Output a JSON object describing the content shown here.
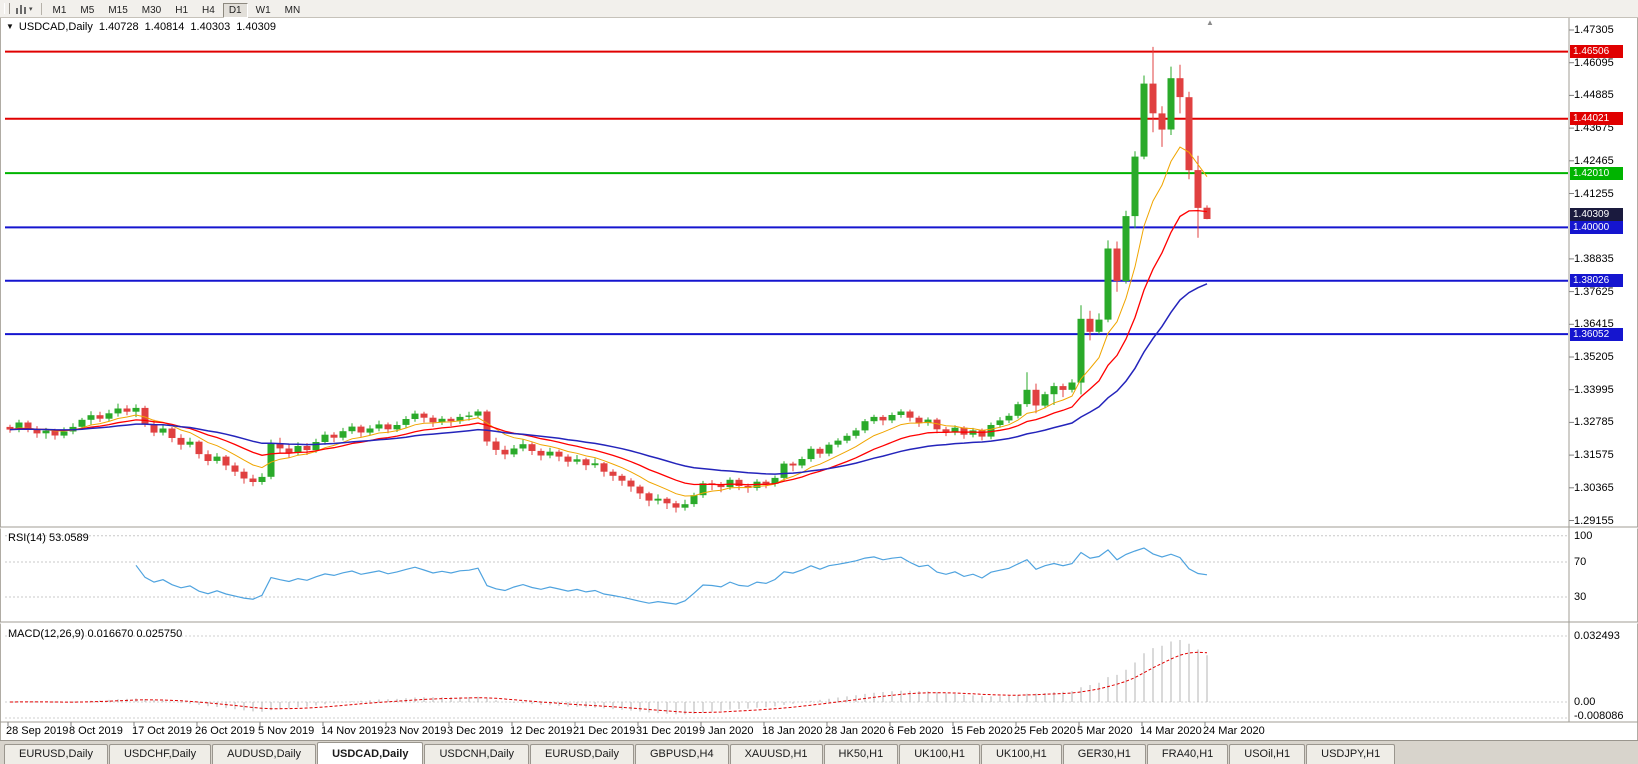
{
  "toolbar": {
    "timeframes": [
      "M1",
      "M5",
      "M15",
      "M30",
      "H1",
      "H4",
      "D1",
      "W1",
      "MN"
    ],
    "active": "D1"
  },
  "chart": {
    "symbol_title": "USDCAD,Daily",
    "ohlc": {
      "open": "1.40728",
      "high": "1.40814",
      "low": "1.40303",
      "close": "1.40309"
    },
    "price_axis_ticks": [
      "1.47305",
      "1.46095",
      "1.44885",
      "1.43675",
      "1.42465",
      "1.41255",
      "1.38835",
      "1.37625",
      "1.36415",
      "1.35205",
      "1.33995",
      "1.32785",
      "1.31575",
      "1.30365",
      "1.29155"
    ],
    "current_price_tag": {
      "value": "1.40309",
      "color": "#1a1a3e"
    },
    "hlines": [
      {
        "price": 1.46506,
        "label": "1.46506",
        "color": "#e00000"
      },
      {
        "price": 1.44021,
        "label": "1.44021",
        "color": "#e00000"
      },
      {
        "price": 1.4201,
        "label": "1.42010",
        "color": "#00b400"
      },
      {
        "price": 1.4,
        "label": "1.40000",
        "color": "#1515cf"
      },
      {
        "price": 1.38026,
        "label": "1.38026",
        "color": "#1515cf"
      },
      {
        "price": 1.36052,
        "label": "1.36052",
        "color": "#1515cf"
      }
    ],
    "date_axis": [
      "28 Sep 2019",
      "8 Oct 2019",
      "17 Oct 2019",
      "26 Oct 2019",
      "5 Nov 2019",
      "14 Nov 2019",
      "23 Nov 2019",
      "3 Dec 2019",
      "12 Dec 2019",
      "21 Dec 2019",
      "31 Dec 2019",
      "9 Jan 2020",
      "18 Jan 2020",
      "28 Jan 2020",
      "6 Feb 2020",
      "15 Feb 2020",
      "25 Feb 2020",
      "5 Mar 2020",
      "14 Mar 2020",
      "24 Mar 2020"
    ],
    "colors": {
      "up": "#2aaa2a",
      "down": "#e04040",
      "ma_fast": "#f0a500",
      "ma_mid": "#ff0000",
      "ma_slow": "#2424bb"
    }
  },
  "chart_data": {
    "type": "candlestick",
    "symbol": "USDCAD",
    "timeframe": "Daily",
    "candles": [
      [
        1.3262,
        1.327,
        1.324,
        1.3252
      ],
      [
        1.3252,
        1.3288,
        1.3242,
        1.3278
      ],
      [
        1.3278,
        1.3285,
        1.3242,
        1.3255
      ],
      [
        1.3255,
        1.3265,
        1.3222,
        1.3238
      ],
      [
        1.3238,
        1.3258,
        1.3218,
        1.3248
      ],
      [
        1.3248,
        1.3255,
        1.3215,
        1.323
      ],
      [
        1.323,
        1.326,
        1.322,
        1.3245
      ],
      [
        1.3245,
        1.3275,
        1.3235,
        1.3262
      ],
      [
        1.3262,
        1.3295,
        1.3252,
        1.3288
      ],
      [
        1.3288,
        1.332,
        1.327,
        1.3305
      ],
      [
        1.3305,
        1.3318,
        1.328,
        1.3292
      ],
      [
        1.3292,
        1.3325,
        1.3282,
        1.3312
      ],
      [
        1.3312,
        1.3348,
        1.33,
        1.333
      ],
      [
        1.333,
        1.3342,
        1.3305,
        1.3318
      ],
      [
        1.3318,
        1.3345,
        1.3298,
        1.3332
      ],
      [
        1.3332,
        1.334,
        1.3262,
        1.3272
      ],
      [
        1.3272,
        1.3288,
        1.3228,
        1.3241
      ],
      [
        1.3241,
        1.3268,
        1.323,
        1.3256
      ],
      [
        1.3256,
        1.3262,
        1.3205,
        1.3221
      ],
      [
        1.3221,
        1.3235,
        1.3178,
        1.3196
      ],
      [
        1.3196,
        1.3222,
        1.3186,
        1.3207
      ],
      [
        1.3207,
        1.3212,
        1.3145,
        1.3161
      ],
      [
        1.3161,
        1.3175,
        1.312,
        1.3136
      ],
      [
        1.3136,
        1.3165,
        1.3126,
        1.3152
      ],
      [
        1.3152,
        1.3158,
        1.3102,
        1.3119
      ],
      [
        1.3119,
        1.313,
        1.308,
        1.3096
      ],
      [
        1.3096,
        1.3108,
        1.3052,
        1.3071
      ],
      [
        1.3071,
        1.3085,
        1.3042,
        1.3058
      ],
      [
        1.3058,
        1.309,
        1.3048,
        1.3077
      ],
      [
        1.3077,
        1.3215,
        1.3068,
        1.3201
      ],
      [
        1.3201,
        1.3222,
        1.3165,
        1.3182
      ],
      [
        1.3182,
        1.3198,
        1.3148,
        1.3166
      ],
      [
        1.3166,
        1.3205,
        1.3156,
        1.3191
      ],
      [
        1.3191,
        1.3202,
        1.3158,
        1.3176
      ],
      [
        1.3176,
        1.3218,
        1.3166,
        1.3206
      ],
      [
        1.3206,
        1.3245,
        1.3196,
        1.3233
      ],
      [
        1.3233,
        1.3242,
        1.3205,
        1.3222
      ],
      [
        1.3222,
        1.3258,
        1.3212,
        1.3246
      ],
      [
        1.3246,
        1.3275,
        1.3236,
        1.3263
      ],
      [
        1.3263,
        1.327,
        1.3225,
        1.3241
      ],
      [
        1.3241,
        1.3268,
        1.3231,
        1.3256
      ],
      [
        1.3256,
        1.3285,
        1.3246,
        1.3271
      ],
      [
        1.3271,
        1.3278,
        1.3238,
        1.3253
      ],
      [
        1.3253,
        1.3282,
        1.3243,
        1.3269
      ],
      [
        1.3269,
        1.3302,
        1.3259,
        1.3291
      ],
      [
        1.3291,
        1.3322,
        1.3281,
        1.3311
      ],
      [
        1.3311,
        1.3318,
        1.3278,
        1.3296
      ],
      [
        1.3296,
        1.3305,
        1.3262,
        1.3279
      ],
      [
        1.3279,
        1.3302,
        1.3269,
        1.3292
      ],
      [
        1.3292,
        1.3299,
        1.3265,
        1.3283
      ],
      [
        1.3283,
        1.331,
        1.3273,
        1.3299
      ],
      [
        1.3299,
        1.3318,
        1.3285,
        1.3304
      ],
      [
        1.3304,
        1.3327,
        1.3294,
        1.3319
      ],
      [
        1.3319,
        1.3325,
        1.3192,
        1.3208
      ],
      [
        1.3208,
        1.3222,
        1.3158,
        1.3177
      ],
      [
        1.3177,
        1.3192,
        1.3142,
        1.316
      ],
      [
        1.316,
        1.3195,
        1.315,
        1.3182
      ],
      [
        1.3182,
        1.3215,
        1.3172,
        1.3198
      ],
      [
        1.3198,
        1.3205,
        1.3158,
        1.3173
      ],
      [
        1.3173,
        1.3182,
        1.3138,
        1.3156
      ],
      [
        1.3156,
        1.3185,
        1.3146,
        1.317
      ],
      [
        1.317,
        1.3178,
        1.3135,
        1.3152
      ],
      [
        1.3152,
        1.316,
        1.3115,
        1.3133
      ],
      [
        1.3133,
        1.3158,
        1.3123,
        1.3142
      ],
      [
        1.3142,
        1.3148,
        1.3102,
        1.312
      ],
      [
        1.312,
        1.3145,
        1.311,
        1.3127
      ],
      [
        1.3127,
        1.3132,
        1.3078,
        1.3096
      ],
      [
        1.3096,
        1.3105,
        1.3062,
        1.3081
      ],
      [
        1.3081,
        1.3088,
        1.3044,
        1.3063
      ],
      [
        1.3063,
        1.3072,
        1.3022,
        1.3041
      ],
      [
        1.3041,
        1.3048,
        1.2995,
        1.3016
      ],
      [
        1.3016,
        1.3022,
        1.2968,
        1.2989
      ],
      [
        1.2989,
        1.3012,
        1.2975,
        1.2996
      ],
      [
        1.2996,
        1.3002,
        1.2958,
        1.2979
      ],
      [
        1.2979,
        1.2988,
        1.2945,
        1.2963
      ],
      [
        1.2963,
        1.2992,
        1.2952,
        1.2976
      ],
      [
        1.2976,
        1.3018,
        1.2966,
        1.3009
      ],
      [
        1.3009,
        1.3062,
        1.2999,
        1.3053
      ],
      [
        1.3053,
        1.3065,
        1.3028,
        1.3049
      ],
      [
        1.3049,
        1.3058,
        1.302,
        1.3039
      ],
      [
        1.3039,
        1.3075,
        1.3029,
        1.3066
      ],
      [
        1.3066,
        1.3073,
        1.3028,
        1.3043
      ],
      [
        1.3043,
        1.3052,
        1.3018,
        1.3036
      ],
      [
        1.3036,
        1.3068,
        1.3026,
        1.3059
      ],
      [
        1.3059,
        1.3066,
        1.3035,
        1.3051
      ],
      [
        1.3051,
        1.3082,
        1.3041,
        1.3073
      ],
      [
        1.3073,
        1.3135,
        1.3063,
        1.3126
      ],
      [
        1.3126,
        1.3133,
        1.3098,
        1.3119
      ],
      [
        1.3119,
        1.3152,
        1.3109,
        1.3143
      ],
      [
        1.3143,
        1.319,
        1.3133,
        1.3181
      ],
      [
        1.3181,
        1.3188,
        1.3148,
        1.3163
      ],
      [
        1.3163,
        1.3205,
        1.3153,
        1.3196
      ],
      [
        1.3196,
        1.322,
        1.3186,
        1.3211
      ],
      [
        1.3211,
        1.3238,
        1.3201,
        1.3229
      ],
      [
        1.3229,
        1.3258,
        1.3219,
        1.3249
      ],
      [
        1.3249,
        1.3291,
        1.3239,
        1.3283
      ],
      [
        1.3283,
        1.3307,
        1.3273,
        1.3299
      ],
      [
        1.3299,
        1.3306,
        1.3268,
        1.3286
      ],
      [
        1.3286,
        1.3315,
        1.3276,
        1.3306
      ],
      [
        1.3306,
        1.3327,
        1.3296,
        1.3319
      ],
      [
        1.3319,
        1.3326,
        1.3282,
        1.3296
      ],
      [
        1.3296,
        1.3303,
        1.3262,
        1.3276
      ],
      [
        1.3276,
        1.3297,
        1.3266,
        1.3289
      ],
      [
        1.3289,
        1.3295,
        1.3238,
        1.3253
      ],
      [
        1.3253,
        1.3262,
        1.3228,
        1.3241
      ],
      [
        1.3241,
        1.3268,
        1.3231,
        1.3259
      ],
      [
        1.3259,
        1.3265,
        1.3218,
        1.3233
      ],
      [
        1.3233,
        1.3258,
        1.3223,
        1.3249
      ],
      [
        1.3249,
        1.3256,
        1.3212,
        1.3226
      ],
      [
        1.3226,
        1.3278,
        1.3216,
        1.3269
      ],
      [
        1.3269,
        1.3298,
        1.3259,
        1.3286
      ],
      [
        1.3286,
        1.3312,
        1.3276,
        1.3303
      ],
      [
        1.3303,
        1.3355,
        1.3293,
        1.3346
      ],
      [
        1.3346,
        1.3464,
        1.3336,
        1.3399
      ],
      [
        1.3399,
        1.3422,
        1.3312,
        1.3341
      ],
      [
        1.3341,
        1.3392,
        1.3331,
        1.3383
      ],
      [
        1.3383,
        1.3425,
        1.3343,
        1.3413
      ],
      [
        1.3413,
        1.3422,
        1.3372,
        1.3399
      ],
      [
        1.3399,
        1.3438,
        1.3389,
        1.3426
      ],
      [
        1.3426,
        1.3712,
        1.3382,
        1.3662
      ],
      [
        1.3662,
        1.3692,
        1.3582,
        1.3614
      ],
      [
        1.3614,
        1.3682,
        1.3604,
        1.3659
      ],
      [
        1.3659,
        1.3952,
        1.3649,
        1.3922
      ],
      [
        1.3922,
        1.3948,
        1.3762,
        1.3802
      ],
      [
        1.3802,
        1.4062,
        1.3792,
        1.4042
      ],
      [
        1.4042,
        1.4282,
        1.3998,
        1.4262
      ],
      [
        1.4262,
        1.4562,
        1.4252,
        1.4532
      ],
      [
        1.4532,
        1.4668,
        1.4352,
        1.4422
      ],
      [
        1.4422,
        1.4448,
        1.4298,
        1.4362
      ],
      [
        1.4362,
        1.4595,
        1.4342,
        1.4552
      ],
      [
        1.4552,
        1.4602,
        1.4422,
        1.4482
      ],
      [
        1.4482,
        1.4502,
        1.4178,
        1.4212
      ],
      [
        1.4212,
        1.4265,
        1.3962,
        1.4072
      ],
      [
        1.40728,
        1.40814,
        1.40303,
        1.40309
      ]
    ]
  },
  "rsi": {
    "label": "RSI(14) 53.0589",
    "levels": [
      "100",
      "70",
      "30"
    ],
    "color": "#4fa3df"
  },
  "macd": {
    "label": "MACD(12,26,9) 0.016670 0.025750",
    "axis": [
      "0.032493",
      "0.00",
      "-0.008086"
    ],
    "histogram_color": "#b4b4b4",
    "signal_color": "#e00000"
  },
  "tabs": [
    "EURUSD,Daily",
    "USDCHF,Daily",
    "AUDUSD,Daily",
    "USDCAD,Daily",
    "USDCNH,Daily",
    "EURUSD,Daily",
    "GBPUSD,H4",
    "XAUUSD,H1",
    "HK50,H1",
    "UK100,H1",
    "UK100,H1",
    "GER30,H1",
    "FRA40,H1",
    "USOil,H1",
    "USDJPY,H1"
  ],
  "active_tab_index": 3
}
